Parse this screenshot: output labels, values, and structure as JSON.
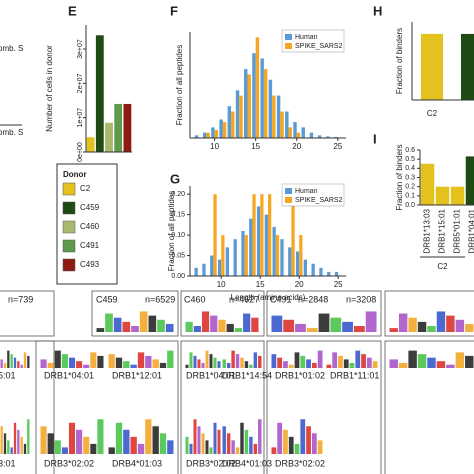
{
  "partial_labels": [
    "comb. S",
    "comb. S"
  ],
  "chart_data": [
    {
      "type": "bar",
      "label": "E",
      "y_label": "Number of cells in donor",
      "categories": [
        null,
        null,
        null,
        null,
        null
      ],
      "values": [
        4300000,
        34000000,
        8500000,
        14000000,
        14000000
      ],
      "colors": [
        "#e4c21e",
        "#1e4a14",
        "#a9b96b",
        "#5d9a4c",
        "#8e1b12"
      ],
      "ylim": [
        0,
        37000000
      ],
      "yticks": [
        {
          "value": 0,
          "label": "0e+00"
        },
        {
          "value": 10000000,
          "label": "1e+07"
        },
        {
          "value": 20000000,
          "label": "2e+07"
        },
        {
          "value": 30000000,
          "label": "3e+07"
        }
      ]
    },
    {
      "type": "bar",
      "label": "F",
      "y_label": "Fraction of all peptides",
      "x": [
        8,
        9,
        10,
        11,
        12,
        13,
        14,
        15,
        16,
        17,
        18,
        19,
        20,
        21,
        22,
        23,
        24,
        25
      ],
      "series": [
        {
          "name": "Human",
          "color": "#5b9bd5",
          "values": [
            0.005,
            0.01,
            0.02,
            0.035,
            0.06,
            0.09,
            0.13,
            0.16,
            0.15,
            0.11,
            0.08,
            0.05,
            0.03,
            0.02,
            0.01,
            0.005,
            0.003,
            0.002
          ]
        },
        {
          "name": "SPIKE_SARS2",
          "color": "#f5a623",
          "values": [
            null,
            0.01,
            0.015,
            0.03,
            0.05,
            0.08,
            0.12,
            0.19,
            0.13,
            0.08,
            0.05,
            0.02,
            0.01,
            null,
            null,
            null,
            null,
            null
          ]
        }
      ],
      "xlim": [
        7,
        26
      ],
      "xticks": [
        10,
        15,
        20,
        25
      ],
      "ylim": [
        0,
        0.2
      ]
    },
    {
      "type": "bar",
      "label": "G",
      "y_label": "Fraction of all peptides",
      "x_label": "Length (amino acids)",
      "x": [
        7,
        8,
        9,
        10,
        11,
        12,
        13,
        14,
        15,
        16,
        17,
        18,
        19,
        20,
        21,
        22,
        23,
        24,
        25
      ],
      "series": [
        {
          "name": "Human",
          "color": "#5b9bd5",
          "values": [
            0.02,
            0.03,
            0.05,
            0.04,
            0.07,
            0.09,
            0.11,
            0.14,
            0.17,
            0.15,
            0.12,
            0.09,
            0.07,
            0.06,
            0.04,
            0.03,
            0.02,
            0.01,
            0.01
          ]
        },
        {
          "name": "SPIKE_SARS2",
          "color": "#f5a623",
          "values": [
            null,
            null,
            0.2,
            0.1,
            null,
            null,
            0.1,
            0.2,
            0.2,
            0.2,
            0.1,
            null,
            0.2,
            0.1,
            null,
            null,
            null,
            null,
            null
          ]
        }
      ],
      "xlim": [
        6,
        26
      ],
      "xticks": [
        10,
        15,
        20,
        25
      ],
      "ylim": [
        0,
        0.22
      ],
      "yticks": [
        {
          "value": 0,
          "label": "0.00"
        },
        0.05,
        {
          "value": 0.1,
          "label": "0.10"
        },
        0.15,
        {
          "value": 0.2,
          "label": "0.20"
        }
      ]
    },
    {
      "type": "bar",
      "label": "H",
      "y_label": "Fraction of binders",
      "categories": [
        "C2",
        null
      ],
      "values": [
        0.72,
        0.72
      ],
      "colors": [
        "#e4c21e",
        "#1e4a14"
      ],
      "ylim": [
        0,
        0.85
      ]
    },
    {
      "type": "bar",
      "label": "I",
      "y_label": "Fraction of binders",
      "categories": [
        "DRB1*13:03",
        "DRB1*15:01",
        "DRB5*01:01",
        "DRB1*04:01"
      ],
      "group_label": "C2",
      "values": [
        0.45,
        0.2,
        0.2,
        0.53
      ],
      "colors": [
        "#e4c21e",
        "#e4c21e",
        "#e4c21e",
        "#1e4a14"
      ],
      "ylim": [
        0,
        0.6
      ],
      "yticks": [
        {
          "value": 0,
          "label": "0.0"
        },
        0.1,
        0.2,
        0.3,
        0.4,
        0.5,
        0.6
      ]
    }
  ],
  "donor_legend": {
    "title": "Donor",
    "entries": [
      {
        "name": "C2",
        "color": "#e4c21e"
      },
      {
        "name": "C459",
        "color": "#1e4a14"
      },
      {
        "name": "C460",
        "color": "#a9b96b"
      },
      {
        "name": "C491",
        "color": "#5d9a4c"
      },
      {
        "name": "C493",
        "color": "#8e1b12"
      }
    ]
  },
  "logos": {
    "headers": [
      "n=739",
      "C459",
      "n=6529",
      "C460",
      "n=4627",
      "C491",
      "n=2848",
      "n=3208"
    ],
    "alleles_row1": [
      "5:01",
      "DRB1*04:01",
      "DRB1*12:01",
      "DRB1*04:01",
      "DRB1*14:54",
      "DRB1*01:02",
      "DRB1*11:01"
    ],
    "alleles_row2": [
      "3:01",
      "DRB3*02:02",
      "DRB4*01:03",
      "DRB3*02:02",
      "DRB4*01:03",
      "DRB3*02:02"
    ]
  }
}
